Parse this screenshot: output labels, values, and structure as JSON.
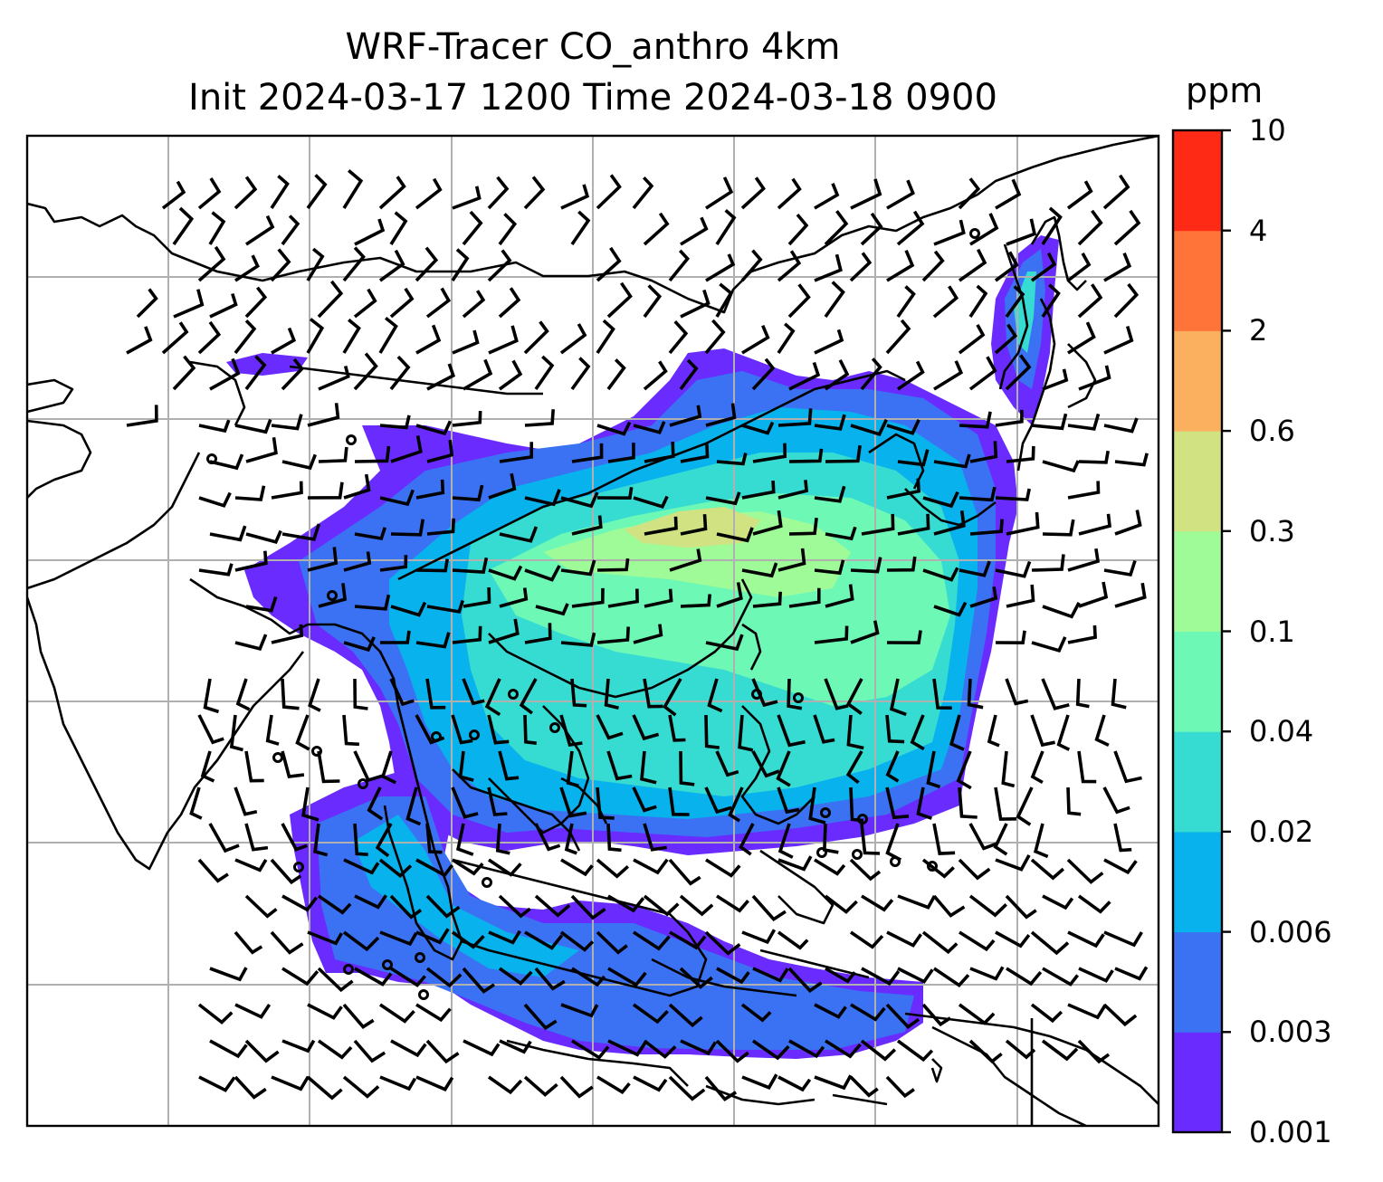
{
  "title": {
    "line1": "WRF-Tracer CO_anthro 4km",
    "line2": "Init 2024-03-17 1200 Time 2024-03-18 0900"
  },
  "colorbar": {
    "unit": "ppm",
    "ticks": [
      "0.001",
      "0.003",
      "0.006",
      "0.02",
      "0.04",
      "0.1",
      "0.3",
      "0.6",
      "2",
      "4",
      "10"
    ],
    "colors": [
      "#6a2bff",
      "#3b72f4",
      "#08b2ec",
      "#36dcd2",
      "#6ef8b6",
      "#9ffb98",
      "#d1e283",
      "#fbb060",
      "#ff7438",
      "#ff2a16"
    ]
  },
  "map": {
    "field": "CO_anthro",
    "units": "ppm",
    "overlay": "wind barbs",
    "grid": "on",
    "coastlines": "on"
  }
}
